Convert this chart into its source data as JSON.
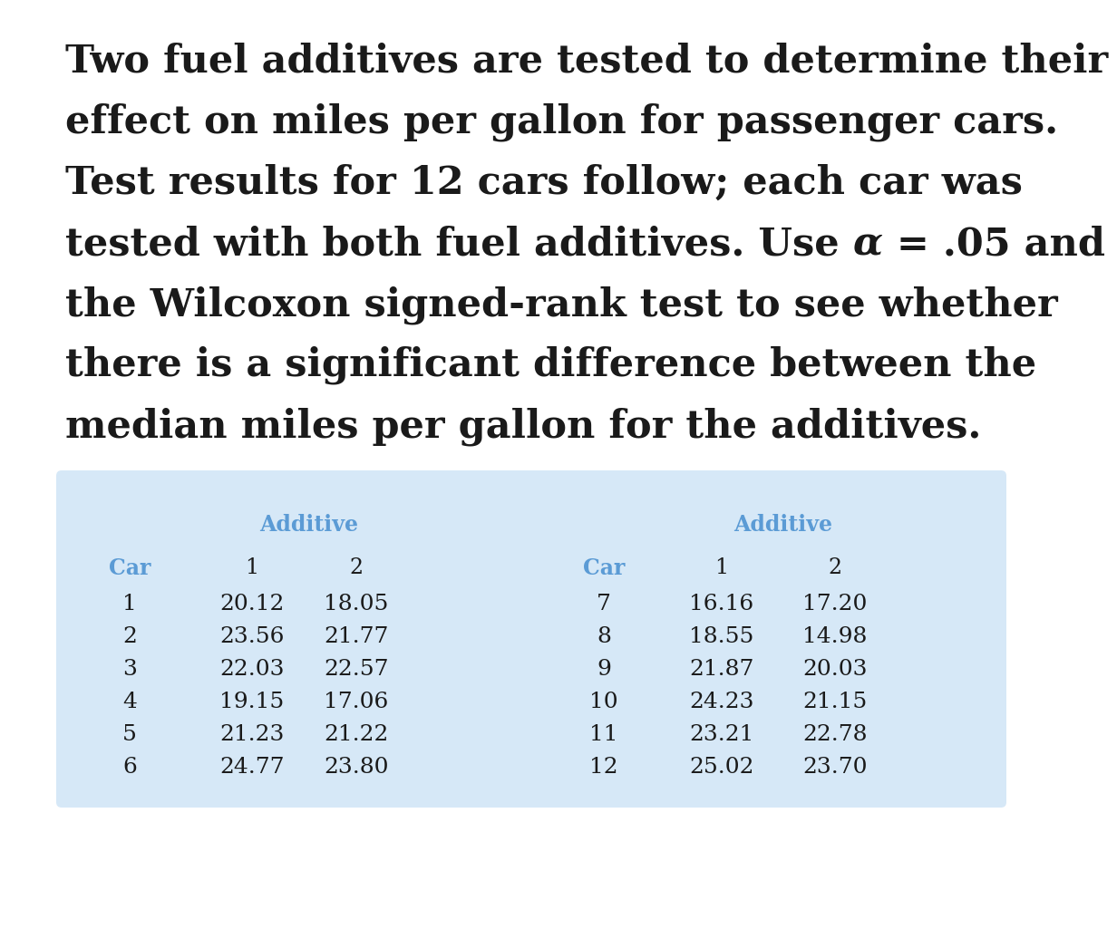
{
  "paragraph_lines": [
    "Two fuel additives are tested to determine their",
    "effect on miles per gallon for passenger cars.",
    "Test results for 12 cars follow; each car was",
    "tested with both fuel additives. Use α = .05 and",
    "the Wilcoxon signed-rank test to see whether",
    "there is a significant difference between the",
    "median miles per gallon for the additives."
  ],
  "alpha_line_index": 3,
  "alpha_split": [
    "tested with both fuel additives. Use ",
    " = .05 and"
  ],
  "table_bg_color": "#d6e8f7",
  "header_color": "#5b9bd5",
  "car_col_color": "#5b9bd5",
  "text_color": "#1a1a1a",
  "bg_color": "#ffffff",
  "left_table": {
    "additive_label": "Additive",
    "col_headers": [
      "Car",
      "1",
      "2"
    ],
    "rows": [
      [
        1,
        "20.12",
        "18.05"
      ],
      [
        2,
        "23.56",
        "21.77"
      ],
      [
        3,
        "22.03",
        "22.57"
      ],
      [
        4,
        "19.15",
        "17.06"
      ],
      [
        5,
        "21.23",
        "21.22"
      ],
      [
        6,
        "24.77",
        "23.80"
      ]
    ]
  },
  "right_table": {
    "additive_label": "Additive",
    "col_headers": [
      "Car",
      "1",
      "2"
    ],
    "rows": [
      [
        7,
        "16.16",
        "17.20"
      ],
      [
        8,
        "18.55",
        "14.98"
      ],
      [
        9,
        "21.87",
        "20.03"
      ],
      [
        10,
        "24.23",
        "21.15"
      ],
      [
        11,
        "23.21",
        "22.78"
      ],
      [
        12,
        "25.02",
        "23.70"
      ]
    ]
  }
}
